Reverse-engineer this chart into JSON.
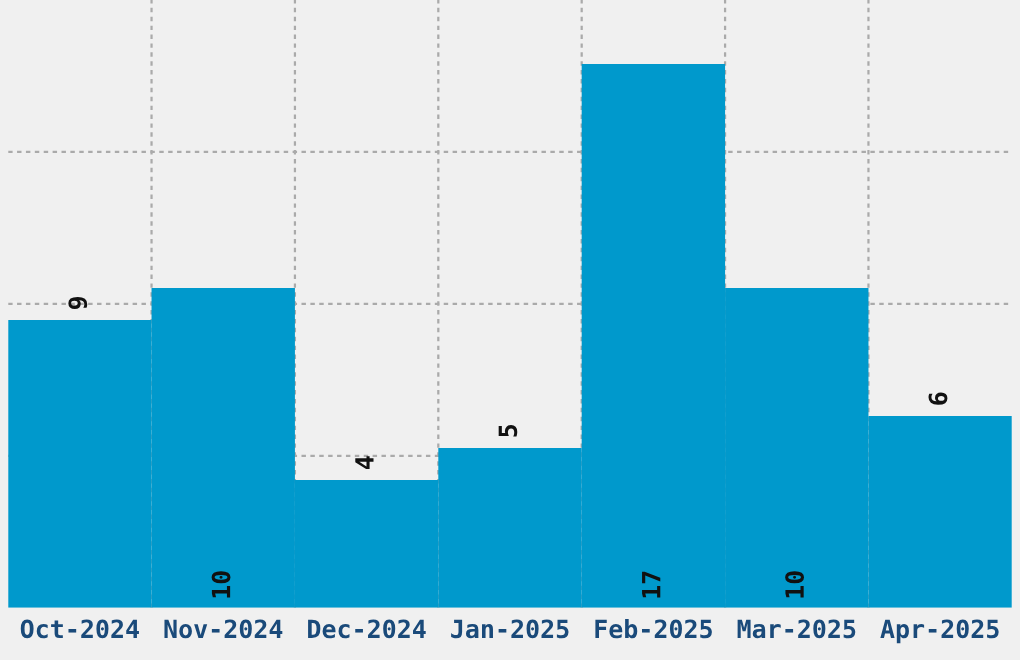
{
  "chart_data": {
    "type": "bar",
    "categories": [
      "Oct-2024",
      "Nov-2024",
      "Dec-2024",
      "Jan-2025",
      "Feb-2025",
      "Mar-2025",
      "Apr-2025"
    ],
    "values": [
      9,
      10,
      4,
      5,
      17,
      10,
      6
    ],
    "color": "#0099cc",
    "ylim": [
      0,
      19
    ],
    "yticks": [
      {
        "value": 4.75,
        "label": null
      },
      {
        "value": 9.5,
        "label": null
      },
      {
        "value": 14.25,
        "label": null
      }
    ],
    "tick_labels": "x",
    "data_labels": true,
    "grid": true
  }
}
